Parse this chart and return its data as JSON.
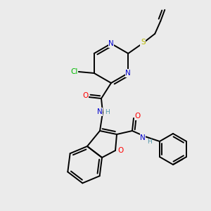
{
  "bg_color": "#ebebeb",
  "atom_colors": {
    "N": "#0000cc",
    "O": "#ff0000",
    "S": "#bbbb00",
    "Cl": "#00bb00",
    "C": "#000000",
    "H": "#5599aa"
  }
}
